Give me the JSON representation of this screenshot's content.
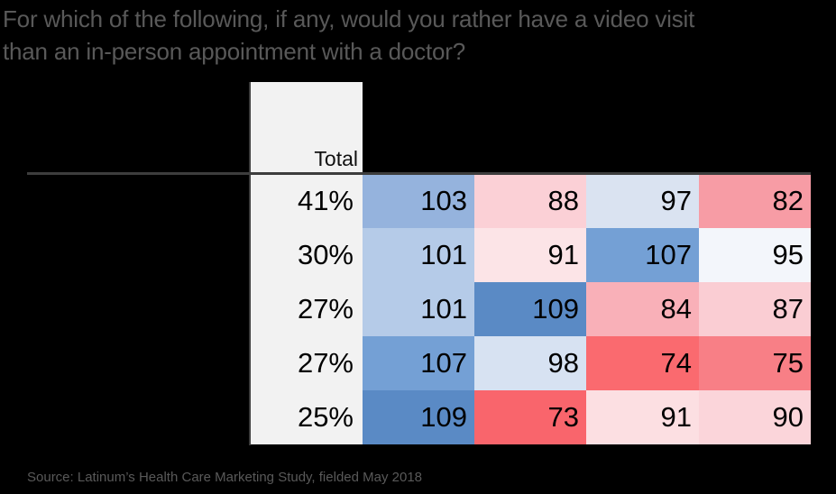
{
  "title": {
    "line1": "For which of the following, if any, would you rather have a video visit",
    "line2": "than an in-person appointment with a doctor?"
  },
  "source": "Source: Latinum’s Health Care Marketing Study, fielded May 2018",
  "colors": {
    "background": "#000000",
    "title_text": "#595959",
    "header_bg": "#f2f2f2",
    "total_column_bg": "#f2f2f2",
    "divider_line": "#3d3d3d",
    "cell_text": "#000000",
    "source_text": "#595959",
    "heat_blue_strong": "#5a8ac5",
    "heat_red_strong": "#f9656c"
  },
  "table": {
    "header": {
      "total_label": "Total"
    },
    "rows": [
      {
        "cells": [
          {
            "text": "41%",
            "bg": "#f2f2f2"
          },
          {
            "text": "103",
            "bg": "#95b3dd"
          },
          {
            "text": "88",
            "bg": "#fbd0d6"
          },
          {
            "text": "97",
            "bg": "#dae3f1"
          },
          {
            "text": "82",
            "bg": "#f79ca5"
          }
        ]
      },
      {
        "cells": [
          {
            "text": "30%",
            "bg": "#f2f2f2"
          },
          {
            "text": "101",
            "bg": "#b5cbe8"
          },
          {
            "text": "91",
            "bg": "#fce4e7"
          },
          {
            "text": "107",
            "bg": "#74a0d5"
          },
          {
            "text": "95",
            "bg": "#f3f6fb"
          }
        ]
      },
      {
        "cells": [
          {
            "text": "27%",
            "bg": "#f2f2f2"
          },
          {
            "text": "101",
            "bg": "#b5cbe8"
          },
          {
            "text": "109",
            "bg": "#5a8ac5"
          },
          {
            "text": "84",
            "bg": "#f9b0b8"
          },
          {
            "text": "87",
            "bg": "#facdd3"
          }
        ]
      },
      {
        "cells": [
          {
            "text": "27%",
            "bg": "#f2f2f2"
          },
          {
            "text": "107",
            "bg": "#74a0d5"
          },
          {
            "text": "98",
            "bg": "#d7e2f2"
          },
          {
            "text": "74",
            "bg": "#fa6a6f"
          },
          {
            "text": "75",
            "bg": "#f87f86"
          }
        ]
      },
      {
        "cells": [
          {
            "text": "25%",
            "bg": "#f2f2f2"
          },
          {
            "text": "109",
            "bg": "#5a8ac5"
          },
          {
            "text": "73",
            "bg": "#f9656c"
          },
          {
            "text": "91",
            "bg": "#fcdfe2"
          },
          {
            "text": "90",
            "bg": "#fbd5da"
          }
        ]
      }
    ]
  },
  "chart_data": {
    "type": "heatmap",
    "title": "For which of the following, if any, would you rather have a video visit than an in-person appointment with a doctor?",
    "visible_column_headers": [
      "Total"
    ],
    "rows": [
      {
        "total_pct": "41%",
        "index_values": [
          103,
          88,
          97,
          82
        ]
      },
      {
        "total_pct": "30%",
        "index_values": [
          101,
          91,
          107,
          95
        ]
      },
      {
        "total_pct": "27%",
        "index_values": [
          101,
          109,
          84,
          87
        ]
      },
      {
        "total_pct": "27%",
        "index_values": [
          107,
          98,
          74,
          75
        ]
      },
      {
        "total_pct": "25%",
        "index_values": [
          109,
          73,
          91,
          90
        ]
      }
    ],
    "color_scale": {
      "midpoint": 100,
      "above_midpoint": "blue (stronger blue = higher index)",
      "below_midpoint": "red (stronger red = lower index)"
    },
    "source": "Source: Latinum’s Health Care Marketing Study, fielded May 2018"
  }
}
